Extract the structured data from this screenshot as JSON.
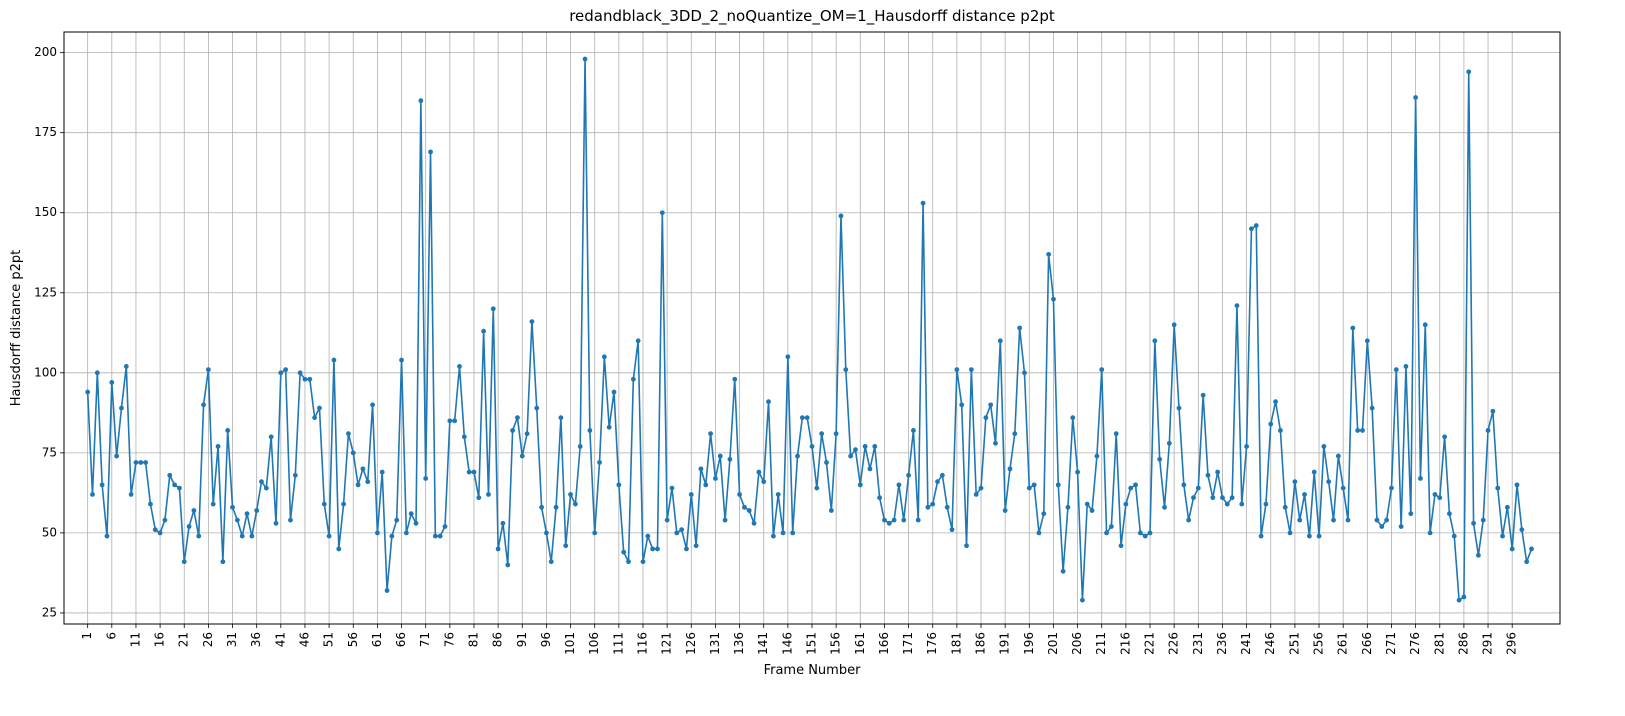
{
  "chart_data": {
    "type": "line",
    "title": "redandblack_3DD_2_noQuantize_OM=1_Hausdorff distance p2pt",
    "xlabel": "Frame Number",
    "ylabel": "Hausdorff distance p2pt",
    "xlim": [
      -3.9,
      305.9
    ],
    "ylim": [
      21.55,
      206.45
    ],
    "grid": true,
    "line_color": "#1f77b4",
    "x_ticks": [
      1,
      6,
      11,
      16,
      21,
      26,
      31,
      36,
      41,
      46,
      51,
      56,
      61,
      66,
      71,
      76,
      81,
      86,
      91,
      96,
      101,
      106,
      111,
      116,
      121,
      126,
      131,
      136,
      141,
      146,
      151,
      156,
      161,
      166,
      171,
      176,
      181,
      186,
      191,
      196,
      201,
      206,
      211,
      216,
      221,
      226,
      231,
      236,
      241,
      246,
      251,
      256,
      261,
      266,
      271,
      276,
      281,
      286,
      291,
      296
    ],
    "y_ticks": [
      25,
      50,
      75,
      100,
      125,
      150,
      175,
      200
    ],
    "x_start": 1,
    "series": [
      {
        "name": "",
        "values": [
          94,
          62,
          100,
          65,
          49,
          97,
          74,
          89,
          102,
          62,
          72,
          72,
          72,
          59,
          51,
          50,
          54,
          68,
          65,
          64,
          41,
          52,
          57,
          49,
          90,
          101,
          59,
          77,
          41,
          82,
          58,
          54,
          49,
          56,
          49,
          57,
          66,
          64,
          80,
          53,
          100,
          101,
          54,
          68,
          100,
          98,
          98,
          86,
          89,
          59,
          49,
          104,
          45,
          59,
          81,
          75,
          65,
          70,
          66,
          90,
          50,
          69,
          32,
          49,
          54,
          104,
          50,
          56,
          53,
          185,
          67,
          169,
          49,
          49,
          52,
          85,
          85,
          102,
          80,
          69,
          69,
          61,
          113,
          62,
          120,
          45,
          53,
          40,
          82,
          86,
          74,
          81,
          116,
          89,
          58,
          50,
          41,
          58,
          86,
          46,
          62,
          59,
          77,
          198,
          82,
          50,
          72,
          105,
          83,
          94,
          65,
          44,
          41,
          98,
          110,
          41,
          49,
          45,
          45,
          150,
          54,
          64,
          50,
          51,
          45,
          62,
          46,
          70,
          65,
          81,
          67,
          74,
          54,
          73,
          98,
          62,
          58,
          57,
          53,
          69,
          66,
          91,
          49,
          62,
          50,
          105,
          50,
          74,
          86,
          86,
          77,
          64,
          81,
          72,
          57,
          81,
          149,
          101,
          74,
          76,
          65,
          77,
          70,
          77,
          61,
          54,
          53,
          54,
          65,
          54,
          68,
          82,
          54,
          153,
          58,
          59,
          66,
          68,
          58,
          51,
          101,
          90,
          46,
          101,
          62,
          64,
          86,
          90,
          78,
          110,
          57,
          70,
          81,
          114,
          100,
          64,
          65,
          50,
          56,
          137,
          123,
          65,
          38,
          58,
          86,
          69,
          29,
          59,
          57,
          74,
          101,
          50,
          52,
          81,
          46,
          59,
          64,
          65,
          50,
          49,
          50,
          110,
          73,
          58,
          78,
          115,
          89,
          65,
          54,
          61,
          64,
          93,
          68,
          61,
          69,
          61,
          59,
          61,
          121,
          59,
          77,
          145,
          146,
          49,
          59,
          84,
          91,
          82,
          58,
          50,
          66,
          54,
          62,
          49,
          69,
          49,
          77,
          66,
          54,
          74,
          64,
          54,
          114,
          82,
          82,
          110,
          89,
          54,
          52,
          54,
          64,
          101,
          52,
          102,
          56,
          186,
          67,
          115,
          50,
          62,
          61,
          80,
          56,
          49,
          29,
          30,
          194,
          53,
          43,
          54,
          82,
          88,
          64,
          49,
          58,
          45,
          65,
          51,
          41,
          45
        ]
      }
    ]
  }
}
